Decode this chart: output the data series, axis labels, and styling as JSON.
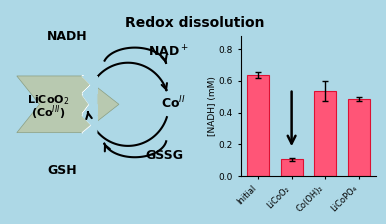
{
  "title": "Redox dissolution",
  "title_fontsize": 10,
  "background_color": "#add8e6",
  "bar_categories": [
    "Initial",
    "LiCoO₂",
    "Co(OH)₂",
    "LiCoPO₄"
  ],
  "bar_values": [
    0.635,
    0.105,
    0.535,
    0.485
  ],
  "bar_errors": [
    0.018,
    0.012,
    0.065,
    0.012
  ],
  "bar_face_color": "#ff5577",
  "bar_edge_color": "#dd1133",
  "bar_width": 0.65,
  "ylabel": "[NADH] (mM)",
  "ylim": [
    0.0,
    0.88
  ],
  "yticks": [
    0.0,
    0.2,
    0.4,
    0.6,
    0.8
  ],
  "nano_color": "#b8c9b0",
  "nano_edge_color": "#8a9e82"
}
